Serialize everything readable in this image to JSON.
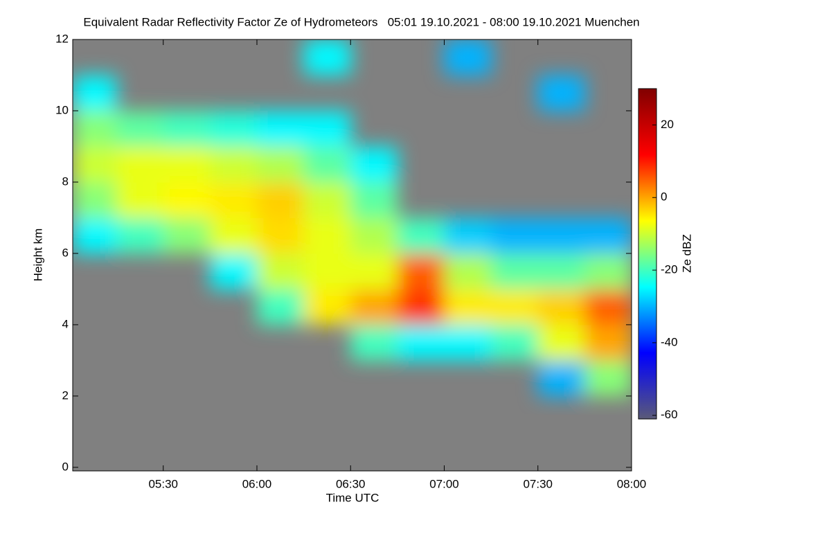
{
  "chart_data": {
    "type": "heatmap",
    "title": "Equivalent Radar Reflectivity Factor Ze of Hydrometeors   05:01 19.10.2021 - 08:00 19.10.2021 Muenchen",
    "xlabel": "Time UTC",
    "ylabel": "Height km",
    "colorbar_label": "Ze dBZ",
    "xlim": [
      "05:01",
      "08:00"
    ],
    "xticks": [
      "05:30",
      "06:00",
      "06:30",
      "07:00",
      "07:30",
      "08:00"
    ],
    "ylim": [
      -0.1,
      12
    ],
    "yticks": [
      0,
      2,
      4,
      6,
      8,
      10,
      12
    ],
    "zlim": [
      -61,
      30
    ],
    "zticks": [
      -60,
      -40,
      -20,
      0,
      20
    ],
    "colorscale": [
      "#5a5a78",
      "#0000ff",
      "#00ffff",
      "#ffff00",
      "#ff0000",
      "#800000"
    ],
    "nodata_color": "#808080",
    "x_bins": [
      "05:01",
      "05:15",
      "05:30",
      "05:45",
      "06:00",
      "06:15",
      "06:30",
      "06:45",
      "07:00",
      "07:15",
      "07:30",
      "07:45",
      "08:00"
    ],
    "y_bins": [
      0,
      1,
      2,
      3,
      4,
      5,
      6,
      7,
      8,
      9,
      10,
      11,
      12
    ],
    "z": [
      [
        null,
        null,
        null,
        null,
        null,
        null,
        null,
        null,
        null,
        null,
        null,
        null
      ],
      [
        null,
        null,
        null,
        null,
        null,
        null,
        null,
        null,
        null,
        null,
        null,
        null
      ],
      [
        null,
        null,
        null,
        null,
        null,
        null,
        null,
        null,
        null,
        null,
        -30,
        -15
      ],
      [
        null,
        null,
        null,
        null,
        null,
        null,
        -20,
        -25,
        -25,
        -20,
        -8,
        0
      ],
      [
        null,
        null,
        null,
        null,
        -20,
        -5,
        0,
        8,
        -5,
        -5,
        -3,
        5
      ],
      [
        null,
        null,
        null,
        -25,
        -10,
        -8,
        -8,
        5,
        -12,
        -18,
        -18,
        -15
      ],
      [
        -25,
        -20,
        -15,
        -8,
        -4,
        -8,
        -12,
        -20,
        -28,
        -30,
        -30,
        -30
      ],
      [
        -15,
        -8,
        -6,
        -5,
        -3,
        -10,
        -18,
        null,
        null,
        null,
        null,
        null
      ],
      [
        -10,
        -8,
        -8,
        -10,
        -12,
        -18,
        -25,
        null,
        null,
        null,
        null,
        null
      ],
      [
        -15,
        -18,
        -20,
        -22,
        -25,
        -25,
        null,
        null,
        null,
        null,
        null,
        null
      ],
      [
        -25,
        null,
        null,
        null,
        null,
        null,
        null,
        null,
        null,
        null,
        -30,
        null
      ],
      [
        null,
        null,
        null,
        null,
        null,
        -25,
        null,
        null,
        -30,
        null,
        null,
        null
      ]
    ]
  }
}
